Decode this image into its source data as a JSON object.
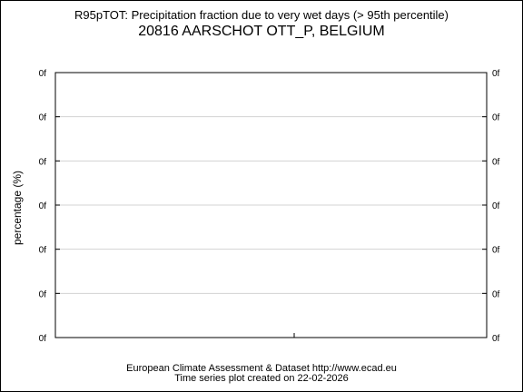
{
  "chart_data": {
    "type": "line",
    "title": "R95pTOT: Precipitation fraction due to very wet days (> 95th percentile)",
    "subtitle": "20816 AARSCHOT OTT_P, BELGIUM",
    "xlabel": "",
    "ylabel": "percentage (%)",
    "y_tick_labels": [
      "0f",
      "0f",
      "0f",
      "0f",
      "0f",
      "0f",
      "0f"
    ],
    "y_tick_labels_right": [
      "0f",
      "0f",
      "0f",
      "0f",
      "0f",
      "0f",
      "0f"
    ],
    "x_tick_labels": [],
    "grid": true,
    "series": []
  },
  "footer": {
    "line1": "European Climate Assessment & Dataset  http://www.ecad.eu",
    "line2": "Time series plot created on 22-02-2026"
  },
  "colors": {
    "axis": "#000000",
    "grid": "#d3d3d3",
    "background": "#ffffff"
  }
}
